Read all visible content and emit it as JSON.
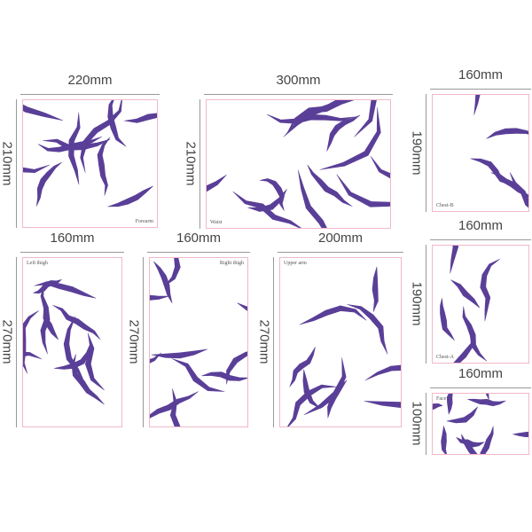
{
  "ink_color": "#5a3f98",
  "sheets": [
    {
      "label": "Forearm",
      "width": "220mm",
      "height": "210mm",
      "label_pos": "bottom-right"
    },
    {
      "label": "Waist",
      "width": "300mm",
      "height": "210mm",
      "label_pos": "bottom-left"
    },
    {
      "label": "Chest-B",
      "width": "160mm",
      "height": "190mm",
      "label_pos": "bottom-left"
    },
    {
      "label": "Left thigh",
      "width": "160mm",
      "height": "270mm",
      "label_pos": "top-left"
    },
    {
      "label": "Right thigh",
      "width": "160mm",
      "height": "270mm",
      "label_pos": "top-right"
    },
    {
      "label": "Upper arm",
      "width": "200mm",
      "height": "270mm",
      "label_pos": "top-left"
    },
    {
      "label": "Chest-A",
      "width": "160mm",
      "height": "190mm",
      "label_pos": "bottom-left"
    },
    {
      "label": "Face",
      "width": "160mm",
      "height": "100mm",
      "label_pos": "top-left"
    }
  ]
}
